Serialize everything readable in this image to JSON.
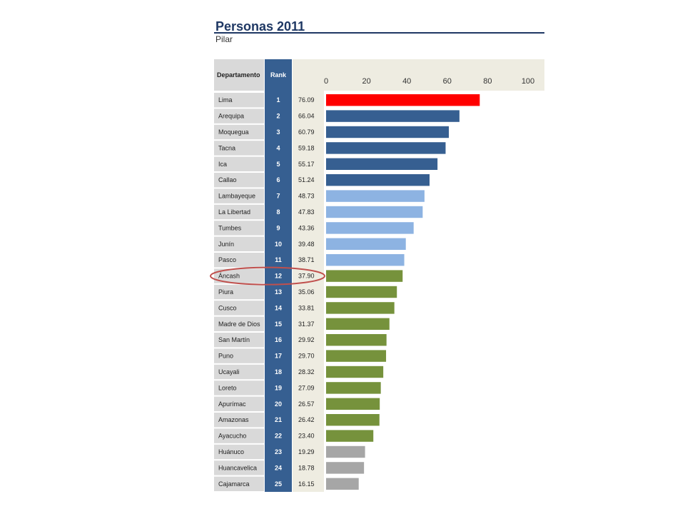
{
  "title": "Personas 2011",
  "subtitle": "Pilar",
  "chart_data": {
    "type": "bar",
    "orientation": "horizontal",
    "column_headers": {
      "departamento": "Departamento",
      "rank": "Rank"
    },
    "xlim": [
      0,
      100
    ],
    "xticks": [
      "0",
      "20",
      "40",
      "60",
      "80",
      "100"
    ],
    "highlighted": "Áncash",
    "rows": [
      {
        "name": "Lima",
        "rank": "1",
        "value": 76.09,
        "label": "76.09",
        "color": "#ff0000"
      },
      {
        "name": "Arequipa",
        "rank": "2",
        "value": 66.04,
        "label": "66.04",
        "color": "#365f91"
      },
      {
        "name": "Moquegua",
        "rank": "3",
        "value": 60.79,
        "label": "60.79",
        "color": "#365f91"
      },
      {
        "name": "Tacna",
        "rank": "4",
        "value": 59.18,
        "label": "59.18",
        "color": "#365f91"
      },
      {
        "name": "Ica",
        "rank": "5",
        "value": 55.17,
        "label": "55.17",
        "color": "#365f91"
      },
      {
        "name": "Callao",
        "rank": "6",
        "value": 51.24,
        "label": "51.24",
        "color": "#365f91"
      },
      {
        "name": "Lambayeque",
        "rank": "7",
        "value": 48.73,
        "label": "48.73",
        "color": "#8db3e2"
      },
      {
        "name": "La Libertad",
        "rank": "8",
        "value": 47.83,
        "label": "47.83",
        "color": "#8db3e2"
      },
      {
        "name": "Tumbes",
        "rank": "9",
        "value": 43.36,
        "label": "43.36",
        "color": "#8db3e2"
      },
      {
        "name": "Junín",
        "rank": "10",
        "value": 39.48,
        "label": "39.48",
        "color": "#8db3e2"
      },
      {
        "name": "Pasco",
        "rank": "11",
        "value": 38.71,
        "label": "38.71",
        "color": "#8db3e2"
      },
      {
        "name": "Áncash",
        "rank": "12",
        "value": 37.9,
        "label": "37.90",
        "color": "#76923c"
      },
      {
        "name": "Piura",
        "rank": "13",
        "value": 35.06,
        "label": "35.06",
        "color": "#76923c"
      },
      {
        "name": "Cusco",
        "rank": "14",
        "value": 33.81,
        "label": "33.81",
        "color": "#76923c"
      },
      {
        "name": "Madre de Dios",
        "rank": "15",
        "value": 31.37,
        "label": "31.37",
        "color": "#76923c"
      },
      {
        "name": "San Martín",
        "rank": "16",
        "value": 29.92,
        "label": "29.92",
        "color": "#76923c"
      },
      {
        "name": "Puno",
        "rank": "17",
        "value": 29.7,
        "label": "29.70",
        "color": "#76923c"
      },
      {
        "name": "Ucayali",
        "rank": "18",
        "value": 28.32,
        "label": "28.32",
        "color": "#76923c"
      },
      {
        "name": "Loreto",
        "rank": "19",
        "value": 27.09,
        "label": "27.09",
        "color": "#76923c"
      },
      {
        "name": "Apurímac",
        "rank": "20",
        "value": 26.57,
        "label": "26.57",
        "color": "#76923c"
      },
      {
        "name": "Amazonas",
        "rank": "21",
        "value": 26.42,
        "label": "26.42",
        "color": "#76923c"
      },
      {
        "name": "Ayacucho",
        "rank": "22",
        "value": 23.4,
        "label": "23.40",
        "color": "#76923c"
      },
      {
        "name": "Huánuco",
        "rank": "23",
        "value": 19.29,
        "label": "19.29",
        "color": "#a6a6a6"
      },
      {
        "name": "Huancavelica",
        "rank": "24",
        "value": 18.78,
        "label": "18.78",
        "color": "#a6a6a6"
      },
      {
        "name": "Cajamarca",
        "rank": "25",
        "value": 16.15,
        "label": "16.15",
        "color": "#a6a6a6"
      }
    ]
  }
}
